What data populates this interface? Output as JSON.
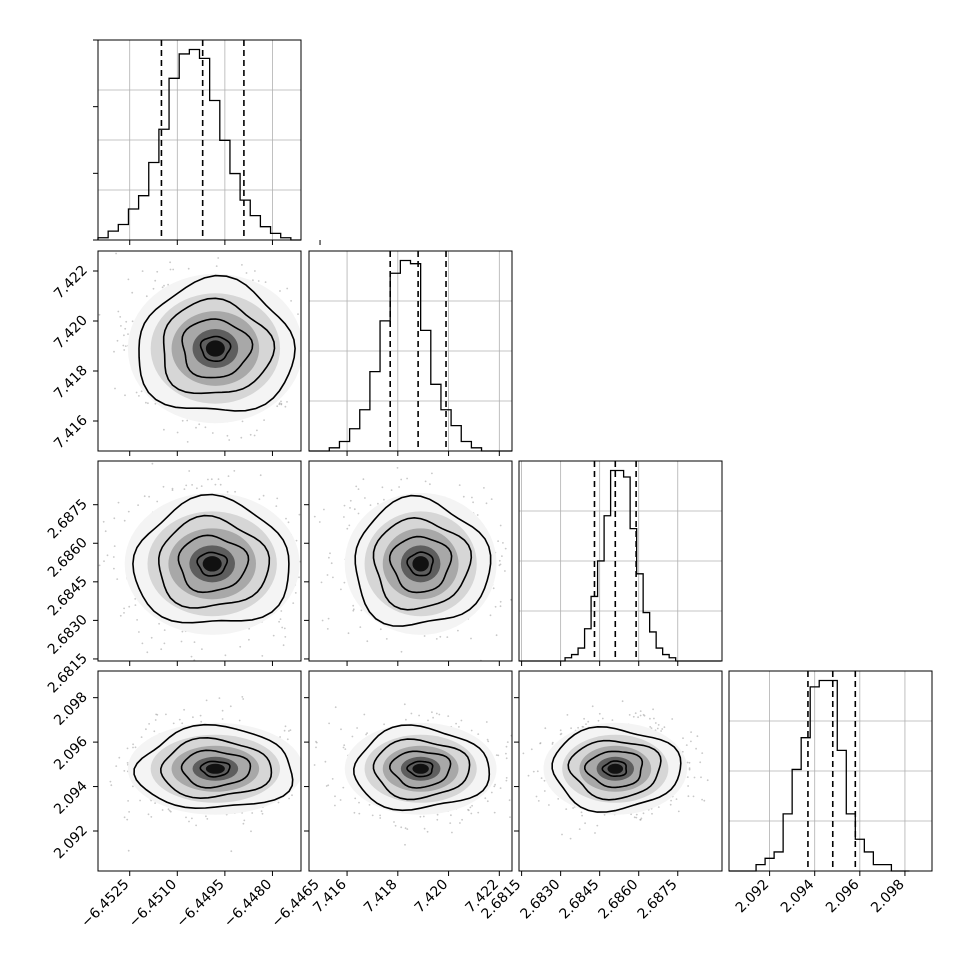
{
  "chart_data": [
    {
      "type": "histogram",
      "param": "p0",
      "bins": [
        -6.4535,
        -6.45318,
        -6.45286,
        -6.45254,
        -6.45222,
        -6.4519,
        -6.45158,
        -6.45126,
        -6.45094,
        -6.45062,
        -6.4503,
        -6.44998,
        -6.44966,
        -6.44934,
        -6.44902,
        -6.4487,
        -6.44838,
        -6.44806,
        -6.44774,
        -6.44742,
        -6.4471
      ],
      "counts": [
        1,
        4,
        7,
        14,
        20,
        35,
        50,
        73,
        84,
        86,
        82,
        63,
        45,
        30,
        18,
        11,
        6,
        3,
        1,
        0
      ],
      "quantiles": [
        -6.4515,
        -6.4502,
        -6.4489
      ],
      "xlim": [
        -6.4535,
        -6.4471
      ]
    },
    {
      "type": "histogram",
      "param": "p1",
      "bins": [
        7.4145,
        7.4149,
        7.4153,
        7.4157,
        7.4161,
        7.4165,
        7.4169,
        7.4173,
        7.4177,
        7.4181,
        7.4185,
        7.4189,
        7.4193,
        7.4197,
        7.4201,
        7.4205,
        7.4209,
        7.4213,
        7.4217,
        7.4221,
        7.4225
      ],
      "counts": [
        0,
        0,
        1,
        3,
        7,
        13,
        25,
        41,
        56,
        60,
        59,
        38,
        21,
        13,
        8,
        3,
        1,
        0,
        0,
        0
      ],
      "quantiles": [
        7.4177,
        7.4188,
        7.4199
      ],
      "xlim": [
        7.4145,
        7.4225
      ]
    },
    {
      "type": "histogram",
      "param": "p2",
      "bins": [
        2.68142,
        2.68167,
        2.68192,
        2.68217,
        2.68242,
        2.68267,
        2.68292,
        2.68317,
        2.68342,
        2.68367,
        2.68392,
        2.68417,
        2.68442,
        2.68467,
        2.68492,
        2.68517,
        2.68542,
        2.68567,
        2.68592,
        2.68617,
        2.68642,
        2.68667,
        2.68692,
        2.68717,
        2.68742,
        2.68767,
        2.68792,
        2.68817,
        2.68842,
        2.68867,
        2.68892,
        2.68917
      ],
      "counts": [
        0,
        0,
        0,
        0,
        0,
        0,
        0,
        1,
        2,
        4,
        10,
        20,
        31,
        45,
        59,
        59,
        57,
        41,
        27,
        15,
        9,
        4,
        2,
        1,
        0,
        0,
        0,
        0,
        0,
        0,
        0
      ],
      "quantiles": [
        2.6843,
        2.6851,
        2.6859
      ],
      "xlim": [
        2.6814,
        2.6892
      ]
    },
    {
      "type": "histogram",
      "param": "p3",
      "bins": [
        2.0902,
        2.0906,
        2.091,
        2.0914,
        2.0918,
        2.0922,
        2.0926,
        2.093,
        2.0934,
        2.0938,
        2.0942,
        2.0946,
        2.095,
        2.0954,
        2.0958,
        2.0962,
        2.0966,
        2.097,
        2.0974,
        2.0978,
        2.0982
      ],
      "counts": [
        0,
        0,
        0,
        1,
        2,
        3,
        9,
        16,
        21,
        29,
        30,
        30,
        19,
        9,
        5,
        3,
        1,
        1,
        0,
        0
      ],
      "quantiles": [
        2.0937,
        2.0948,
        2.0958
      ],
      "xlim": [
        2.0902,
        2.0992
      ]
    },
    {
      "type": "heatmap",
      "x_param": "p0",
      "y_param": "p1",
      "center": [
        -6.4498,
        7.4189
      ],
      "spread": [
        0.0012,
        0.0013
      ],
      "xlim": [
        -6.4535,
        -6.4471
      ],
      "ylim": [
        7.4148,
        7.4228
      ]
    },
    {
      "type": "heatmap",
      "x_param": "p0",
      "y_param": "p2",
      "center": [
        -6.4499,
        2.6852
      ],
      "spread": [
        0.0012,
        0.0012
      ],
      "xlim": [
        -6.4535,
        -6.4471
      ],
      "ylim": [
        2.68142,
        2.6892
      ]
    },
    {
      "type": "heatmap",
      "x_param": "p1",
      "y_param": "p2",
      "center": [
        7.4189,
        2.6852
      ],
      "spread": [
        0.0013,
        0.0012
      ],
      "xlim": [
        7.4145,
        7.4225
      ],
      "ylim": [
        2.68142,
        2.6892
      ]
    },
    {
      "type": "heatmap",
      "x_param": "p0",
      "y_param": "p3",
      "center": [
        -6.4498,
        2.0948
      ],
      "spread": [
        0.0012,
        0.0009
      ],
      "xlim": [
        -6.4535,
        -6.4471
      ],
      "ylim": [
        2.0902,
        2.0992
      ]
    },
    {
      "type": "heatmap",
      "x_param": "p1",
      "y_param": "p3",
      "center": [
        7.4189,
        2.0948
      ],
      "spread": [
        0.0013,
        0.0009
      ],
      "xlim": [
        7.4145,
        7.4225
      ],
      "ylim": [
        2.0902,
        2.0992
      ]
    },
    {
      "type": "heatmap",
      "x_param": "p2",
      "y_param": "p3",
      "center": [
        2.6851,
        2.0948
      ],
      "spread": [
        0.0012,
        0.0009
      ],
      "xlim": [
        2.6814,
        2.6892
      ],
      "ylim": [
        2.0902,
        2.0992
      ]
    }
  ],
  "axes": {
    "x_ticks": [
      [
        "−6.4525",
        "−6.4510",
        "−6.4495",
        "−6.4480",
        "−6.4465"
      ],
      [
        "7.416",
        "7.418",
        "7.420",
        "7.422"
      ],
      [
        "2.6815",
        "2.6830",
        "2.6845",
        "2.6860",
        "2.6875"
      ],
      [
        "2.092",
        "2.094",
        "2.096",
        "2.098"
      ]
    ],
    "x_tick_values": [
      [
        -6.4525,
        -6.451,
        -6.4495,
        -6.448,
        -6.4465
      ],
      [
        7.416,
        7.418,
        7.42,
        7.422
      ],
      [
        2.6815,
        2.683,
        2.6845,
        2.686,
        2.6875
      ],
      [
        2.092,
        2.094,
        2.096,
        2.098
      ]
    ],
    "y_ticks": {
      "row1": [
        "7.416",
        "7.418",
        "7.420",
        "7.422"
      ],
      "row2": [
        "2.6815",
        "2.6830",
        "2.6845",
        "2.6860",
        "2.6875"
      ],
      "row3": [
        "2.092",
        "2.094",
        "2.096",
        "2.098"
      ]
    },
    "y_tick_values": {
      "row1": [
        7.416,
        7.418,
        7.42,
        7.422
      ],
      "row2": [
        2.6815,
        2.683,
        2.6845,
        2.686,
        2.6875
      ],
      "row3": [
        2.092,
        2.094,
        2.096,
        2.098
      ]
    }
  },
  "colors": {
    "line": "#000000",
    "grid": "#b0b0b0",
    "points": "#9a9a9a"
  }
}
